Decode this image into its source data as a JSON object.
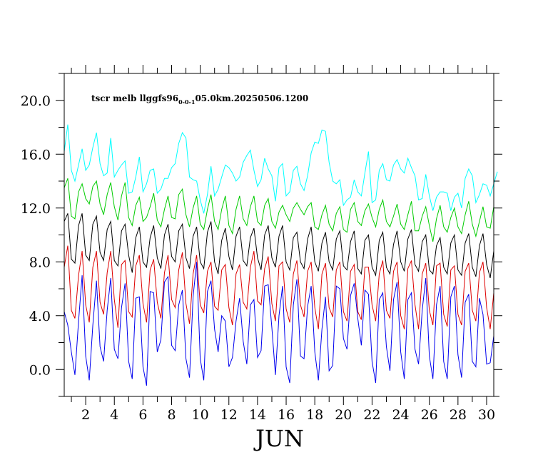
{
  "chart_data": {
    "type": "line",
    "title": "tscr melb llggfs96",
    "title_subscript": "0-0-1",
    "title_suffix": "05.0km.20250506.1200",
    "xlabel": "JUN",
    "ylabel": "",
    "xlim": [
      0.5,
      30.5
    ],
    "ylim": [
      -2,
      22
    ],
    "x_ticks": [
      2,
      4,
      6,
      8,
      10,
      12,
      14,
      16,
      18,
      20,
      22,
      24,
      26,
      28,
      30
    ],
    "x_tick_labels": [
      "2",
      "4",
      "6",
      "8",
      "10",
      "12",
      "14",
      "16",
      "18",
      "20",
      "22",
      "24",
      "26",
      "28",
      "30"
    ],
    "y_ticks": [
      0,
      4,
      8,
      12,
      16,
      20
    ],
    "y_tick_labels": [
      "0.0",
      "4.0",
      "8.0",
      "12.0",
      "16.0",
      "20.0"
    ],
    "grid": false,
    "legend": "none",
    "x_step_days": 0.25,
    "x_start_day": 0.5,
    "series": [
      {
        "color": "#00ffff",
        "values": [
          16.2,
          18.2,
          14.8,
          14.0,
          15.2,
          16.4,
          14.8,
          15.2,
          16.5,
          17.6,
          15.3,
          14.4,
          14.6,
          17.2,
          14.3,
          14.8,
          15.2,
          15.5,
          13.1,
          13.2,
          14.3,
          15.8,
          13.2,
          13.8,
          14.8,
          14.9,
          13.1,
          13.4,
          14.2,
          14.2,
          15.0,
          15.3,
          16.8,
          17.6,
          17.2,
          14.3,
          14.1,
          14.0,
          12.6,
          11.6,
          13.0,
          15.1,
          12.9,
          13.4,
          14.3,
          15.2,
          15.0,
          14.6,
          14.0,
          14.3,
          15.4,
          15.9,
          16.3,
          14.8,
          13.6,
          14.1,
          15.7,
          14.9,
          14.4,
          12.5,
          15.0,
          15.3,
          12.9,
          13.2,
          14.8,
          15.1,
          13.8,
          13.3,
          14.4,
          16.1,
          16.9,
          16.8,
          17.8,
          17.7,
          15.4,
          14.0,
          13.8,
          14.1,
          12.2,
          12.6,
          12.8,
          14.1,
          13.2,
          12.9,
          14.6,
          16.2,
          12.4,
          12.6,
          14.8,
          15.3,
          14.1,
          14.0,
          15.2,
          15.6,
          14.9,
          14.6,
          15.7,
          15.0,
          14.4,
          12.6,
          12.7,
          14.5,
          12.9,
          11.8,
          12.8,
          13.2,
          13.2,
          13.1,
          11.8,
          12.8,
          13.1,
          12.0,
          14.2,
          14.9,
          14.4,
          12.4,
          13.0,
          13.8,
          13.7,
          12.9,
          13.8,
          14.7
        ]
      },
      {
        "color": "#00cc00",
        "values": [
          13.5,
          14.2,
          11.4,
          11.2,
          13.2,
          13.8,
          12.7,
          12.3,
          13.6,
          14.0,
          12.3,
          11.5,
          13.0,
          13.9,
          12.1,
          11.1,
          12.9,
          13.9,
          11.3,
          10.7,
          12.2,
          12.8,
          11.0,
          11.3,
          12.1,
          13.1,
          11.1,
          10.6,
          11.9,
          12.9,
          11.3,
          11.2,
          13.0,
          13.4,
          11.5,
          10.6,
          12.0,
          12.9,
          10.8,
          10.4,
          11.9,
          13.0,
          11.0,
          10.4,
          11.9,
          12.9,
          10.7,
          10.1,
          11.9,
          12.9,
          11.2,
          10.7,
          12.1,
          12.9,
          11.0,
          10.7,
          12.2,
          12.7,
          11.0,
          10.5,
          11.7,
          12.2,
          11.5,
          11.0,
          12.0,
          12.4,
          11.9,
          11.5,
          12.1,
          12.4,
          10.6,
          10.4,
          11.5,
          12.2,
          10.8,
          10.3,
          11.6,
          12.1,
          10.4,
          10.2,
          11.9,
          12.4,
          11.0,
          10.7,
          11.8,
          12.3,
          11.3,
          10.6,
          11.9,
          12.6,
          11.0,
          10.6,
          11.4,
          12.3,
          10.8,
          10.4,
          11.5,
          12.5,
          10.3,
          10.3,
          11.4,
          12.1,
          10.7,
          9.5,
          11.2,
          12.2,
          10.6,
          10.2,
          11.3,
          12.0,
          10.6,
          10.1,
          11.5,
          12.5,
          10.8,
          9.9,
          11.0,
          12.1,
          10.6,
          10.5,
          12.1
        ]
      },
      {
        "color": "#000000",
        "values": [
          11.0,
          11.6,
          8.2,
          7.9,
          10.7,
          11.6,
          8.5,
          8.1,
          10.8,
          11.4,
          8.7,
          8.1,
          10.4,
          11.0,
          8.1,
          7.7,
          10.3,
          10.8,
          8.5,
          7.2,
          9.8,
          10.6,
          8.0,
          7.6,
          9.8,
          10.7,
          8.3,
          7.5,
          10.0,
          10.8,
          8.4,
          8.0,
          10.3,
          10.8,
          8.3,
          7.5,
          9.9,
          10.6,
          8.0,
          7.5,
          10.2,
          11.0,
          8.0,
          7.1,
          9.6,
          10.5,
          8.4,
          7.4,
          9.9,
          10.6,
          8.1,
          7.7,
          9.8,
          10.5,
          8.3,
          7.4,
          10.0,
          10.7,
          8.3,
          7.6,
          9.9,
          10.7,
          8.0,
          7.4,
          9.8,
          10.2,
          8.0,
          7.5,
          9.7,
          10.6,
          8.0,
          7.3,
          9.4,
          10.2,
          8.0,
          7.4,
          9.7,
          10.3,
          7.7,
          7.4,
          9.5,
          10.3,
          7.5,
          7.1,
          9.6,
          10.0,
          7.6,
          7.0,
          9.6,
          10.2,
          7.6,
          7.1,
          9.3,
          10.3,
          8.0,
          7.3,
          9.7,
          10.4,
          7.8,
          7.3,
          9.5,
          10.0,
          7.4,
          7.1,
          9.2,
          9.8,
          7.6,
          7.1,
          9.4,
          10.0,
          7.4,
          7.0,
          9.4,
          10.1,
          7.6,
          6.9,
          9.2,
          10.1,
          7.8,
          6.8,
          8.8
        ]
      },
      {
        "color": "#dd0000",
        "values": [
          7.6,
          9.2,
          4.4,
          3.8,
          7.0,
          8.8,
          4.8,
          3.5,
          7.6,
          8.8,
          5.0,
          4.1,
          7.2,
          8.8,
          5.2,
          3.1,
          7.8,
          8.1,
          4.3,
          3.9,
          7.7,
          8.5,
          4.9,
          3.5,
          7.4,
          8.2,
          5.0,
          3.8,
          7.2,
          8.5,
          5.2,
          4.6,
          7.4,
          8.7,
          4.9,
          3.4,
          7.1,
          8.5,
          4.8,
          4.2,
          7.3,
          8.0,
          4.7,
          4.4,
          7.4,
          7.8,
          4.6,
          3.3,
          7.1,
          7.8,
          5.0,
          4.5,
          7.6,
          8.8,
          5.1,
          4.8,
          7.5,
          8.4,
          4.9,
          3.6,
          7.7,
          8.0,
          4.5,
          3.5,
          7.1,
          8.1,
          4.8,
          3.9,
          7.3,
          8.0,
          4.6,
          3.0,
          7.1,
          7.9,
          4.6,
          3.9,
          7.4,
          8.0,
          4.3,
          3.6,
          7.3,
          7.8,
          4.3,
          3.7,
          7.6,
          7.6,
          4.8,
          3.6,
          7.1,
          8.1,
          4.4,
          3.8,
          7.3,
          8.0,
          4.0,
          3.0,
          7.5,
          8.1,
          4.8,
          3.0,
          7.1,
          7.9,
          4.4,
          3.3,
          7.7,
          7.9,
          4.1,
          3.2,
          7.4,
          7.7,
          4.1,
          3.3,
          7.3,
          7.9,
          4.4,
          3.6,
          7.2,
          8.0,
          4.6,
          3.0,
          5.7
        ]
      },
      {
        "color": "#0000ee",
        "values": [
          4.3,
          3.3,
          1.3,
          -0.4,
          3.6,
          7.0,
          1.0,
          -0.8,
          3.3,
          6.6,
          1.7,
          0.6,
          4.4,
          6.8,
          1.5,
          0.8,
          4.6,
          6.4,
          0.6,
          -0.7,
          5.3,
          5.4,
          0.2,
          -1.2,
          5.8,
          5.7,
          1.3,
          2.2,
          6.5,
          6.9,
          1.8,
          1.4,
          4.8,
          5.9,
          0.8,
          -0.6,
          5.4,
          8.0,
          0.8,
          -0.8,
          5.8,
          6.6,
          3.0,
          1.3,
          4.0,
          3.6,
          0.2,
          0.9,
          3.6,
          5.3,
          2.1,
          0.4,
          4.8,
          5.2,
          0.9,
          1.4,
          6.2,
          6.3,
          3.1,
          -0.4,
          4.0,
          6.2,
          0.2,
          -1.0,
          4.8,
          6.7,
          1.0,
          0.8,
          4.7,
          6.2,
          1.3,
          -0.8,
          3.0,
          5.4,
          -0.1,
          0.3,
          6.2,
          6.0,
          2.3,
          1.5,
          5.5,
          6.4,
          3.8,
          1.8,
          5.9,
          5.6,
          0.6,
          -1.0,
          5.2,
          5.7,
          1.7,
          -0.1,
          5.2,
          6.5,
          1.3,
          -0.7,
          5.2,
          5.7,
          1.5,
          0.4,
          4.4,
          6.8,
          1.0,
          -0.7,
          4.8,
          6.2,
          0.6,
          -0.7,
          5.4,
          6.2,
          1.1,
          -0.6,
          5.0,
          5.6,
          0.6,
          0.2,
          5.3,
          4.1,
          0.4,
          0.5,
          2.5
        ]
      }
    ]
  }
}
